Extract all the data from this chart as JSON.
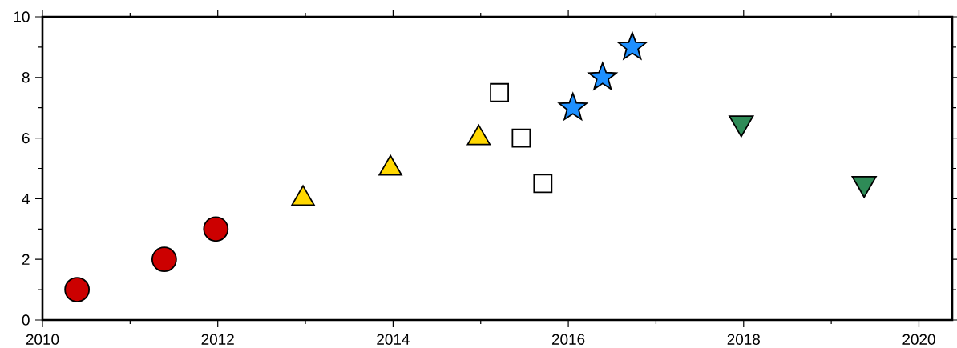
{
  "chart_data": {
    "type": "scatter",
    "xlim": [
      "2010-01-01",
      "2020-05-19"
    ],
    "ylim": [
      0,
      10
    ],
    "xticks": [
      {
        "value": "2010-01-01",
        "label": "2010"
      },
      {
        "value": "2011-01-01",
        "label": null
      },
      {
        "value": "2012-01-01",
        "label": "2012"
      },
      {
        "value": "2013-01-01",
        "label": null
      },
      {
        "value": "2014-01-01",
        "label": "2014"
      },
      {
        "value": "2015-01-01",
        "label": null
      },
      {
        "value": "2016-01-01",
        "label": "2016"
      },
      {
        "value": "2017-01-01",
        "label": null
      },
      {
        "value": "2018-01-01",
        "label": "2018"
      },
      {
        "value": "2019-01-01",
        "label": null
      },
      {
        "value": "2020-01-01",
        "label": "2020"
      }
    ],
    "yticks": [
      0,
      {
        "value": 1,
        "label": null
      },
      2,
      {
        "value": 3,
        "label": null
      },
      4,
      {
        "value": 5,
        "label": null
      },
      6,
      {
        "value": 7,
        "label": null
      },
      8,
      {
        "value": 9,
        "label": null
      },
      10
    ],
    "series": [
      {
        "color": "#cc0000",
        "marker": "circle",
        "x": [
          "2010-05-25",
          "2011-05-23",
          "2011-12-24"
        ],
        "values": [
          1,
          2,
          3
        ]
      },
      {
        "color": "#ffd700",
        "marker": "triangle",
        "x": [
          "2012-12-22",
          "2013-12-21",
          "2014-12-24"
        ],
        "values": [
          4,
          5,
          6
        ]
      },
      {
        "color": "#000000",
        "marker": "square",
        "x": [
          "2015-03-20",
          "2015-06-19",
          "2015-09-17"
        ],
        "values": [
          7.5,
          6,
          4.5
        ]
      },
      {
        "color": "#1e90ff",
        "marker": "star",
        "x": [
          "2016-01-20",
          "2016-05-23",
          "2016-09-24"
        ],
        "values": [
          7,
          8,
          9
        ]
      },
      {
        "color": "#2e8b57",
        "marker": "triangle-down",
        "x": [
          "2017-12-22",
          "2019-05-18"
        ],
        "values": [
          6.5,
          4.5
        ]
      }
    ]
  }
}
